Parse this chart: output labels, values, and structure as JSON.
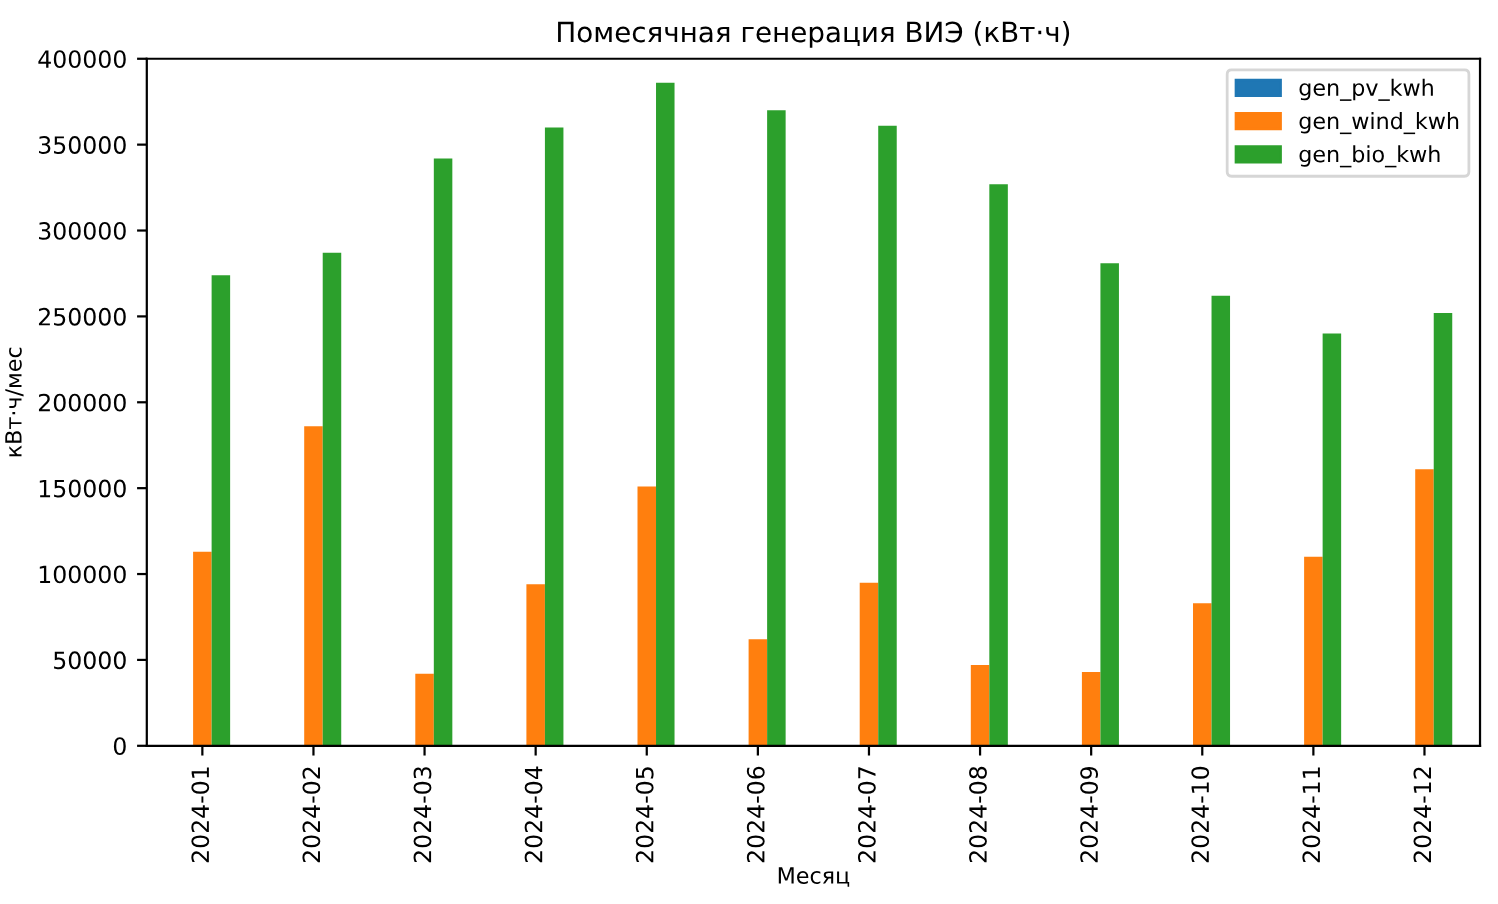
{
  "chart_data": {
    "type": "bar",
    "title": "Помесячная генерация ВИЭ (кВт·ч)",
    "xlabel": "Месяц",
    "ylabel": "кВт·ч/мес",
    "categories": [
      "2024-01",
      "2024-02",
      "2024-03",
      "2024-04",
      "2024-05",
      "2024-06",
      "2024-07",
      "2024-08",
      "2024-09",
      "2024-10",
      "2024-11",
      "2024-12"
    ],
    "series": [
      {
        "name": "gen_pv_kwh",
        "color": "#1f77b4",
        "values": [
          0,
          0,
          0,
          0,
          0,
          0,
          0,
          0,
          0,
          0,
          0,
          0
        ]
      },
      {
        "name": "gen_wind_kwh",
        "color": "#ff7f0e",
        "values": [
          113000,
          186000,
          42000,
          94000,
          151000,
          62000,
          95000,
          47000,
          43000,
          83000,
          110000,
          161000
        ]
      },
      {
        "name": "gen_bio_kwh",
        "color": "#2ca02c",
        "values": [
          274000,
          287000,
          342000,
          360000,
          386000,
          370000,
          361000,
          327000,
          281000,
          262000,
          240000,
          252000
        ]
      }
    ],
    "ylim": [
      0,
      400000
    ],
    "yticks": [
      0,
      50000,
      100000,
      150000,
      200000,
      250000,
      300000,
      350000,
      400000
    ],
    "legend": "top right",
    "grid": false
  }
}
